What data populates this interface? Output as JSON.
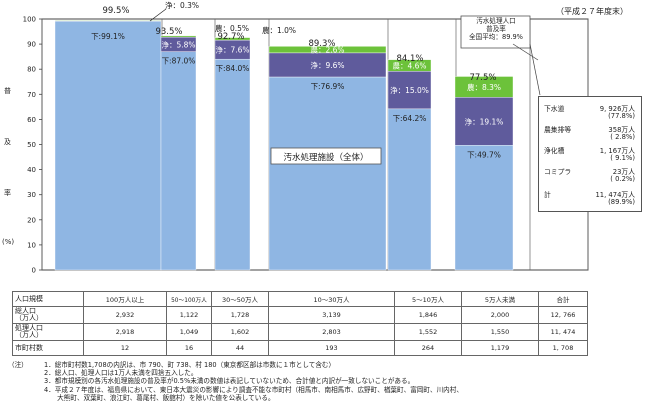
{
  "fiscal_year": "（平成２７年度末）",
  "info_box": {
    "line1": "汚水処理人口",
    "line2": "普及率",
    "line3": "全国平均：89.9%"
  },
  "legend": [
    {
      "label": "下水道",
      "value": "9, 926万人",
      "pct": "(77.8%)"
    },
    {
      "label": "農集排等",
      "value": "358万人",
      "pct": "( 2.8%)"
    },
    {
      "label": "浄化槽",
      "value": "1, 167万人",
      "pct": "( 9.1%)"
    },
    {
      "label": "コミプラ",
      "value": "23万人",
      "pct": "( 0.2%)"
    },
    {
      "label": "計",
      "value": "11, 474万人",
      "pct": "(89.9%)"
    }
  ],
  "overall_label": "汚水処理施設（全体）",
  "y_axis_chars": [
    "普",
    "及",
    "率",
    "(%)"
  ],
  "chart_data": {
    "type": "bar",
    "stacked": true,
    "categories": [
      "100万人以上",
      "50〜100万人",
      "30〜50万人",
      "10〜30万人",
      "5〜10万人",
      "5万人未満"
    ],
    "ylim": [
      0,
      100
    ],
    "yticks": [
      0,
      10,
      20,
      30,
      40,
      50,
      60,
      70,
      80,
      90,
      100
    ],
    "totals": [
      "99.5%",
      "93.5%",
      "92.7%",
      "89.3%",
      "84.1%",
      "77.5%"
    ],
    "series": [
      {
        "name": "下水道",
        "color": "#8fb6e3",
        "values": [
          99.1,
          87.0,
          84.0,
          76.9,
          64.2,
          49.7
        ],
        "labels": [
          "下:99.1%",
          "下:87.0%",
          "下:84.0%",
          "下:76.9%",
          "下:64.2%",
          "下:49.7%"
        ]
      },
      {
        "name": "浄化槽",
        "color": "#5f5b9c",
        "values": [
          0.3,
          5.8,
          7.6,
          9.6,
          15.0,
          19.1
        ],
        "labels": [
          "浄：0.3%",
          "浄：5.8%",
          "浄：7.6%",
          "浄：9.6%",
          "浄：15.0%",
          "浄：19.1%"
        ]
      },
      {
        "name": "農集排等",
        "color": "#6cc23a",
        "values": [
          0.1,
          0.5,
          1.0,
          2.6,
          4.6,
          8.3
        ],
        "labels": [
          "",
          "農：0.5%",
          "農：1.0%",
          "農：2.6%",
          "農：4.6%",
          "農：8.3%"
        ]
      }
    ]
  },
  "table": {
    "header": {
      "label": "人口規模",
      "cols": [
        "100万人以上",
        "50〜100万人",
        "30〜50万人",
        "10〜30万人",
        "5〜10万人",
        "5万人未満"
      ],
      "total": "合計"
    },
    "rows": [
      {
        "label": "総人口\n（万人）",
        "values": [
          "2,932",
          "1,122",
          "1,728",
          "3,139",
          "1,846",
          "2,000"
        ],
        "total": "12, 766"
      },
      {
        "label": "処理人口\n（万人）",
        "values": [
          "2,918",
          "1,049",
          "1,602",
          "2,803",
          "1,552",
          "1,550"
        ],
        "total": "11, 474"
      },
      {
        "label": "市町村数",
        "values": [
          "12",
          "16",
          "44",
          "193",
          "264",
          "1,179"
        ],
        "total": "1, 708"
      }
    ]
  },
  "notes_head": "（注）",
  "notes": [
    "1．総市町村数1,708の内訳は、市 790、町 738、村 180（東京都区部は市数に１市として含む）",
    "2．総人口、処理人口は1万人未満を四捨五入した。",
    "3．都市規模別の各汚水処理施設の普及率が0.5%未満の数値は表記していないため、合計値と内訳が一致しないことがある。",
    "4．平成２７年度は、福島県において、東日本大震災の影響により調査不能な市町村（相馬市、南相馬市、広野町、楢葉町、富岡町、川内村、",
    "　　大熊町、双葉町、浪江町、葛尾村、飯舘村）を除いた値を公表している。"
  ]
}
